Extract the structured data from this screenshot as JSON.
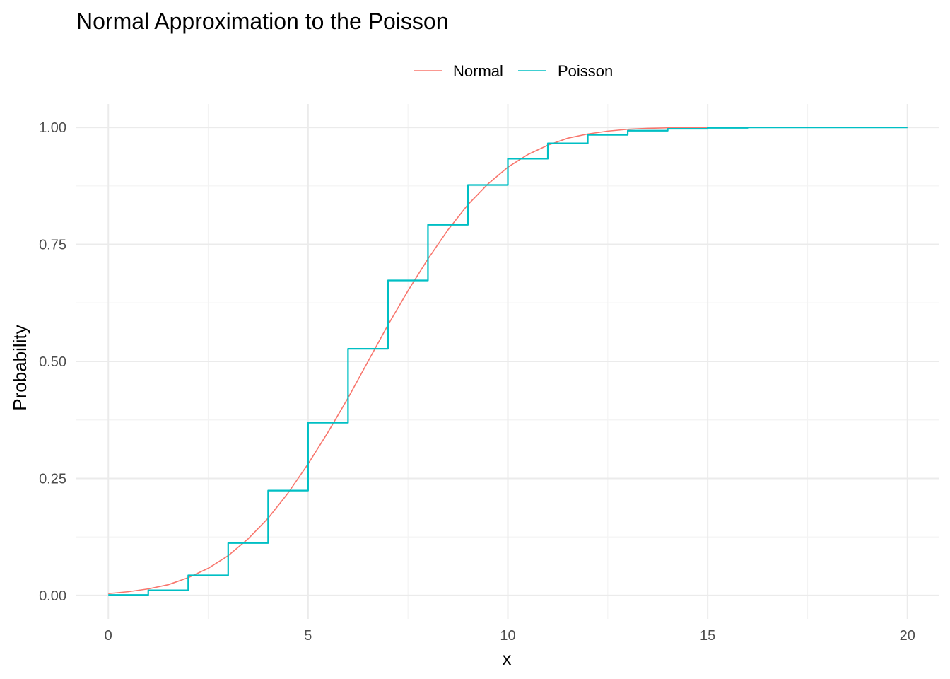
{
  "chart_data": {
    "type": "line",
    "title": "Normal Approximation to the Poisson",
    "xlabel": "x",
    "ylabel": "Probability",
    "xlim": [
      -0.8,
      20.8
    ],
    "ylim": [
      -0.05,
      1.05
    ],
    "x_ticks": [
      0,
      5,
      10,
      15,
      20
    ],
    "x_tick_labels": [
      "0",
      "5",
      "10",
      "15",
      "20"
    ],
    "y_ticks": [
      0,
      0.25,
      0.5,
      0.75,
      1.0
    ],
    "y_tick_labels": [
      "0.00",
      "0.25",
      "0.50",
      "0.75",
      "1.00"
    ],
    "grid": true,
    "legend_position": "top",
    "series": [
      {
        "name": "Normal",
        "kind": "line",
        "color": "#F8766D",
        "x": [
          0,
          0.5,
          1,
          1.5,
          2,
          2.5,
          3,
          3.5,
          4,
          4.5,
          5,
          5.5,
          6,
          6.5,
          7,
          7.5,
          8,
          8.5,
          9,
          9.5,
          10,
          10.5,
          11,
          11.5,
          12,
          12.5,
          13,
          13.5,
          14,
          14.5,
          15,
          15.5,
          16,
          16.5,
          17,
          17.5,
          18,
          18.5,
          19,
          19.5,
          20
        ],
        "y": [
          0.004,
          0.008,
          0.014,
          0.023,
          0.038,
          0.058,
          0.085,
          0.121,
          0.165,
          0.219,
          0.281,
          0.349,
          0.422,
          0.5,
          0.578,
          0.651,
          0.719,
          0.781,
          0.835,
          0.879,
          0.915,
          0.942,
          0.962,
          0.977,
          0.986,
          0.992,
          0.996,
          0.998,
          0.999,
          0.9995,
          0.9998,
          0.9999,
          1.0,
          1.0,
          1.0,
          1.0,
          1.0,
          1.0,
          1.0,
          1.0,
          1.0
        ]
      },
      {
        "name": "Poisson",
        "kind": "step",
        "color": "#00BFC4",
        "x": [
          0,
          1,
          2,
          3,
          4,
          5,
          6,
          7,
          8,
          9,
          10,
          11,
          12,
          13,
          14,
          15,
          16,
          17,
          18,
          19,
          20
        ],
        "y": [
          0.001,
          0.011,
          0.043,
          0.112,
          0.224,
          0.369,
          0.527,
          0.673,
          0.792,
          0.877,
          0.933,
          0.966,
          0.984,
          0.993,
          0.997,
          0.999,
          1.0,
          1.0,
          1.0,
          1.0,
          1.0
        ]
      }
    ]
  }
}
